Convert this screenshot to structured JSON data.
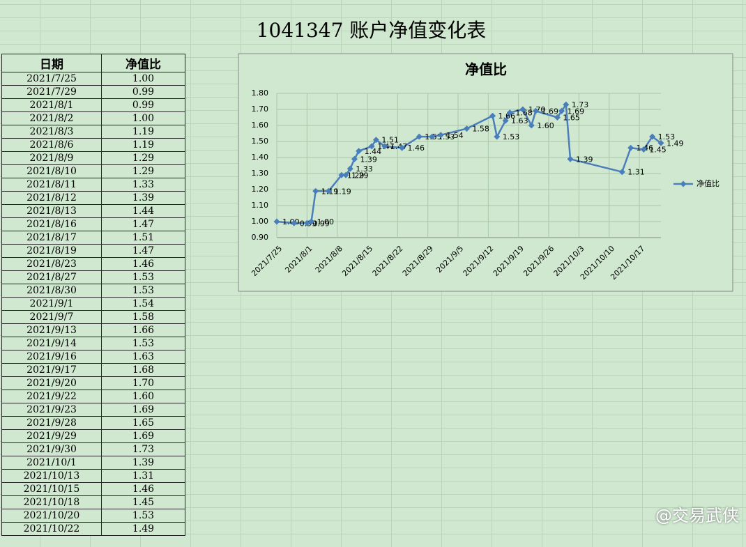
{
  "title": "1041347 账户净值变化表",
  "watermark": "@交易武侠",
  "table": {
    "header": [
      "日期",
      "净值比"
    ],
    "rows": [
      [
        "2021/7/25",
        "1.00"
      ],
      [
        "2021/7/29",
        "0.99"
      ],
      [
        "2021/8/1",
        "0.99"
      ],
      [
        "2021/8/2",
        "1.00"
      ],
      [
        "2021/8/3",
        "1.19"
      ],
      [
        "2021/8/6",
        "1.19"
      ],
      [
        "2021/8/9",
        "1.29"
      ],
      [
        "2021/8/10",
        "1.29"
      ],
      [
        "2021/8/11",
        "1.33"
      ],
      [
        "2021/8/12",
        "1.39"
      ],
      [
        "2021/8/13",
        "1.44"
      ],
      [
        "2021/8/16",
        "1.47"
      ],
      [
        "2021/8/17",
        "1.51"
      ],
      [
        "2021/8/19",
        "1.47"
      ],
      [
        "2021/8/23",
        "1.46"
      ],
      [
        "2021/8/27",
        "1.53"
      ],
      [
        "2021/8/30",
        "1.53"
      ],
      [
        "2021/9/1",
        "1.54"
      ],
      [
        "2021/9/7",
        "1.58"
      ],
      [
        "2021/9/13",
        "1.66"
      ],
      [
        "2021/9/14",
        "1.53"
      ],
      [
        "2021/9/16",
        "1.63"
      ],
      [
        "2021/9/17",
        "1.68"
      ],
      [
        "2021/9/20",
        "1.70"
      ],
      [
        "2021/9/22",
        "1.60"
      ],
      [
        "2021/9/23",
        "1.69"
      ],
      [
        "2021/9/28",
        "1.65"
      ],
      [
        "2021/9/29",
        "1.69"
      ],
      [
        "2021/9/30",
        "1.73"
      ],
      [
        "2021/10/1",
        "1.39"
      ],
      [
        "2021/10/13",
        "1.31"
      ],
      [
        "2021/10/15",
        "1.46"
      ],
      [
        "2021/10/18",
        "1.45"
      ],
      [
        "2021/10/20",
        "1.53"
      ],
      [
        "2021/10/22",
        "1.49"
      ]
    ]
  },
  "chart_data": {
    "type": "line",
    "title": "净值比",
    "x": [
      "2021/7/25",
      "2021/7/29",
      "2021/8/1",
      "2021/8/2",
      "2021/8/3",
      "2021/8/6",
      "2021/8/9",
      "2021/8/10",
      "2021/8/11",
      "2021/8/12",
      "2021/8/13",
      "2021/8/16",
      "2021/8/17",
      "2021/8/19",
      "2021/8/23",
      "2021/8/27",
      "2021/8/30",
      "2021/9/1",
      "2021/9/7",
      "2021/9/13",
      "2021/9/14",
      "2021/9/16",
      "2021/9/17",
      "2021/9/20",
      "2021/9/22",
      "2021/9/23",
      "2021/9/28",
      "2021/9/29",
      "2021/9/30",
      "2021/10/1",
      "2021/10/13",
      "2021/10/15",
      "2021/10/18",
      "2021/10/20",
      "2021/10/22"
    ],
    "series": [
      {
        "name": "净值比",
        "color": "#4a7ebb",
        "values": [
          1.0,
          0.99,
          0.99,
          1.0,
          1.19,
          1.19,
          1.29,
          1.29,
          1.33,
          1.39,
          1.44,
          1.47,
          1.51,
          1.47,
          1.46,
          1.53,
          1.53,
          1.54,
          1.58,
          1.66,
          1.53,
          1.63,
          1.68,
          1.7,
          1.6,
          1.69,
          1.65,
          1.69,
          1.73,
          1.39,
          1.31,
          1.46,
          1.45,
          1.53,
          1.49
        ],
        "value_labels": [
          "1.00",
          "0.99",
          "0.99",
          "1.00",
          "1.19",
          "1.19",
          "1.29",
          "1.29",
          "1.33",
          "1.39",
          "1.44",
          "1.47",
          "1.51",
          "1.47",
          "1.46",
          "1.53",
          "1.53",
          "1.54",
          "1.58",
          "1.66",
          "1.53",
          "1.63",
          "1.68",
          "1.70",
          "1.60",
          "1.69",
          "1.65",
          "1.69",
          "1.73",
          "1.39",
          "1.31",
          "1.46",
          "1.45",
          "1.53",
          "1.49"
        ]
      }
    ],
    "xlim": [
      "2021/7/25",
      "2021/10/22"
    ],
    "xticks": [
      "2021/7/25",
      "2021/8/1",
      "2021/8/8",
      "2021/8/15",
      "2021/8/22",
      "2021/8/29",
      "2021/9/5",
      "2021/9/12",
      "2021/9/19",
      "2021/9/26",
      "2021/10/3",
      "2021/10/10",
      "2021/10/17"
    ],
    "ylim": [
      0.9,
      1.8
    ],
    "yticks": [
      {
        "value": 0.9,
        "label": "0.90"
      },
      {
        "value": 1.0,
        "label": "1.00"
      },
      {
        "value": 1.1,
        "label": "1.10"
      },
      {
        "value": 1.2,
        "label": "1.20"
      },
      {
        "value": 1.3,
        "label": "1.30"
      },
      {
        "value": 1.4,
        "label": "1.40"
      },
      {
        "value": 1.5,
        "label": "1.50"
      },
      {
        "value": 1.6,
        "label": "1.60"
      },
      {
        "value": 1.7,
        "label": "1.70"
      },
      {
        "value": 1.8,
        "label": "1.80"
      }
    ],
    "grid": true,
    "legend": "right"
  }
}
